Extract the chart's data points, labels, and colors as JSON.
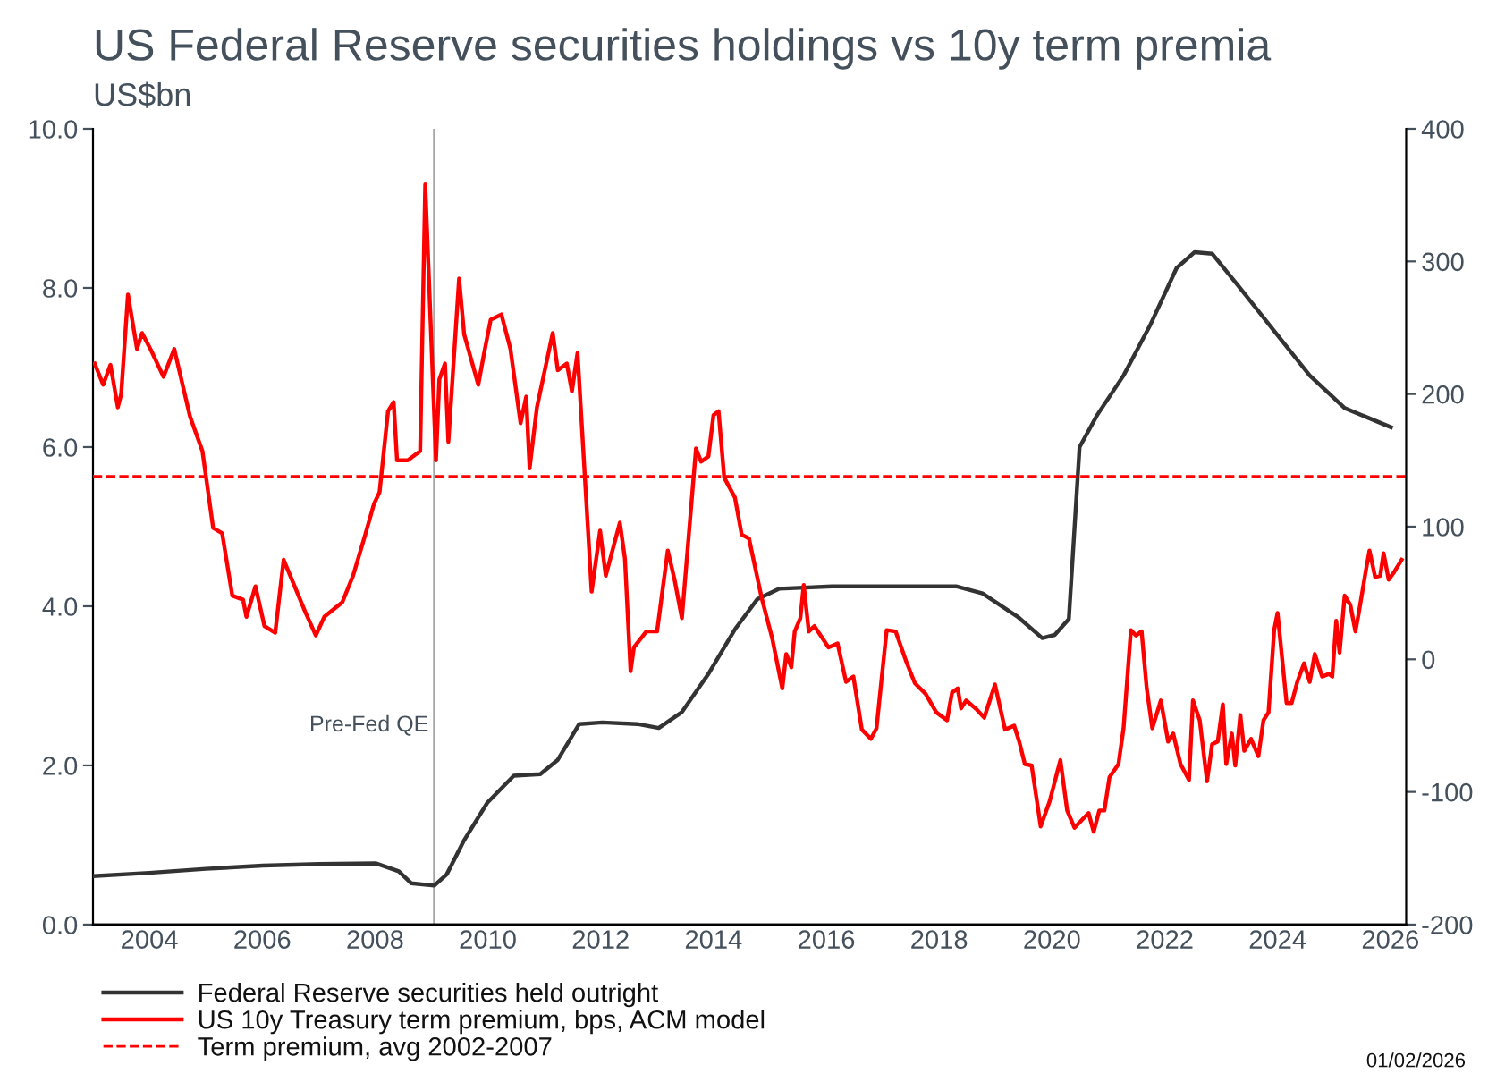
{
  "chart_data": {
    "type": "line",
    "title": "US Federal Reserve securities holdings vs 10y term premia",
    "subtitle": "US$bn",
    "xlim": [
      2003,
      2026.28
    ],
    "xticks": [
      2004,
      2006,
      2008,
      2010,
      2012,
      2014,
      2016,
      2018,
      2020,
      2022,
      2024,
      2026
    ],
    "ylim": [
      0,
      10
    ],
    "yticks": [
      {
        "value": 0,
        "label": "0.0"
      },
      {
        "value": 2,
        "label": "2.0"
      },
      {
        "value": 4,
        "label": "4.0"
      },
      {
        "value": 6,
        "label": "6.0"
      },
      {
        "value": 8,
        "label": "8.0"
      },
      {
        "value": 10,
        "label": "10.0"
      }
    ],
    "y2lim": [
      -200,
      400
    ],
    "y2ticks": [
      -200,
      -100,
      0,
      100,
      200,
      300,
      400
    ],
    "grid": false,
    "legend": "bottom left",
    "marker": "none",
    "series": [
      {
        "name": "Federal Reserve securities held outright",
        "color": "#333333",
        "axis": "y",
        "x": [
          2003.0,
          2004.0,
          2005.0,
          2006.01,
          2007.01,
          2008.01,
          2008.42,
          2008.64,
          2009.05,
          2009.27,
          2009.58,
          2009.99,
          2010.46,
          2010.93,
          2011.24,
          2011.62,
          2012.03,
          2012.65,
          2013.03,
          2013.44,
          2013.91,
          2014.38,
          2014.78,
          2015.16,
          2016.1,
          2017.36,
          2018.3,
          2018.77,
          2019.39,
          2019.83,
          2020.05,
          2020.3,
          2020.49,
          2020.8,
          2021.27,
          2021.74,
          2022.21,
          2022.53,
          2022.84,
          2023.31,
          2023.94,
          2024.57,
          2025.19,
          2026.01
        ],
        "values": [
          0.61,
          0.65,
          0.7,
          0.74,
          0.76,
          0.77,
          0.67,
          0.52,
          0.49,
          0.63,
          1.06,
          1.53,
          1.87,
          1.89,
          2.07,
          2.52,
          2.54,
          2.52,
          2.47,
          2.67,
          3.15,
          3.71,
          4.09,
          4.22,
          4.25,
          4.25,
          4.25,
          4.16,
          3.87,
          3.6,
          3.64,
          3.84,
          6.0,
          6.4,
          6.9,
          7.53,
          8.25,
          8.45,
          8.43,
          8.02,
          7.46,
          6.9,
          6.49,
          6.25
        ]
      },
      {
        "name": "US 10y Treasury term premium, bps, ACM model",
        "color": "#ff0000",
        "axis": "y2",
        "x": [
          2003.03,
          2003.18,
          2003.31,
          2003.44,
          2003.5,
          2003.62,
          2003.78,
          2003.87,
          2004.03,
          2004.25,
          2004.44,
          2004.72,
          2004.94,
          2005.13,
          2005.29,
          2005.47,
          2005.66,
          2005.72,
          2005.88,
          2006.04,
          2006.23,
          2006.38,
          2006.76,
          2006.95,
          2007.1,
          2007.42,
          2007.61,
          2007.82,
          2007.98,
          2008.08,
          2008.23,
          2008.33,
          2008.39,
          2008.58,
          2008.8,
          2008.89,
          2009.08,
          2009.14,
          2009.24,
          2009.3,
          2009.49,
          2009.58,
          2009.83,
          2009.93,
          2010.05,
          2010.24,
          2010.4,
          2010.58,
          2010.68,
          2010.74,
          2010.87,
          2011.15,
          2011.24,
          2011.4,
          2011.49,
          2011.59,
          2011.84,
          2011.99,
          2012.09,
          2012.34,
          2012.43,
          2012.53,
          2012.59,
          2012.81,
          2013.0,
          2013.19,
          2013.31,
          2013.44,
          2013.69,
          2013.78,
          2013.91,
          2014.0,
          2014.09,
          2014.19,
          2014.38,
          2014.5,
          2014.63,
          2014.85,
          2015.04,
          2015.22,
          2015.29,
          2015.38,
          2015.44,
          2015.54,
          2015.6,
          2015.69,
          2015.79,
          2016.04,
          2016.2,
          2016.35,
          2016.48,
          2016.63,
          2016.79,
          2016.89,
          2017.07,
          2017.23,
          2017.42,
          2017.57,
          2017.76,
          2017.95,
          2018.14,
          2018.23,
          2018.33,
          2018.39,
          2018.48,
          2018.67,
          2018.8,
          2018.99,
          2019.17,
          2019.33,
          2019.42,
          2019.52,
          2019.64,
          2019.8,
          2019.96,
          2020.15,
          2020.27,
          2020.4,
          2020.58,
          2020.65,
          2020.74,
          2020.84,
          2020.93,
          2021.02,
          2021.18,
          2021.27,
          2021.4,
          2021.49,
          2021.59,
          2021.68,
          2021.78,
          2021.93,
          2022.06,
          2022.15,
          2022.28,
          2022.43,
          2022.5,
          2022.62,
          2022.75,
          2022.84,
          2022.94,
          2023.03,
          2023.09,
          2023.19,
          2023.25,
          2023.34,
          2023.41,
          2023.53,
          2023.66,
          2023.75,
          2023.84,
          2023.94,
          2024.0,
          2024.16,
          2024.25,
          2024.35,
          2024.47,
          2024.57,
          2024.66,
          2024.79,
          2024.91,
          2024.97,
          2025.04,
          2025.1,
          2025.19,
          2025.29,
          2025.38,
          2025.44,
          2025.57,
          2025.63,
          2025.73,
          2025.82,
          2025.88,
          2025.97,
          2026.07,
          2026.2
        ],
        "values": [
          223,
          207,
          222,
          190,
          200,
          275,
          234,
          246,
          233,
          213,
          234,
          183,
          157,
          99,
          95,
          48,
          45,
          32,
          55,
          25,
          20,
          75,
          36,
          18,
          32,
          43,
          63,
          93,
          117,
          126,
          187,
          194,
          150,
          150,
          157,
          358,
          150,
          211,
          223,
          164,
          287,
          245,
          207,
          230,
          256,
          260,
          234,
          178,
          198,
          144,
          190,
          246,
          218,
          223,
          202,
          231,
          51,
          97,
          63,
          103,
          76,
          -9,
          9,
          21,
          21,
          82,
          60,
          31,
          159,
          149,
          153,
          184,
          187,
          137,
          122,
          94,
          91,
          47,
          16,
          -22,
          4,
          -6,
          21,
          31,
          56,
          21,
          25,
          9,
          12,
          -17,
          -13,
          -53,
          -60,
          -52,
          22,
          21,
          -2,
          -18,
          -26,
          -40,
          -46,
          -25,
          -22,
          -37,
          -31,
          -38,
          -44,
          -19,
          -53,
          -50,
          -62,
          -79,
          -80,
          -126,
          -107,
          -76,
          -114,
          -127,
          -119,
          -116,
          -130,
          -114,
          -114,
          -89,
          -79,
          -52,
          22,
          18,
          21,
          -22,
          -52,
          -31,
          -62,
          -56,
          -79,
          -91,
          -31,
          -46,
          -92,
          -64,
          -62,
          -34,
          -79,
          -56,
          -80,
          -42,
          -69,
          -60,
          -73,
          -46,
          -40,
          22,
          35,
          -33,
          -33,
          -17,
          -3,
          -17,
          4,
          -13,
          -11,
          -13,
          29,
          5,
          48,
          41,
          21,
          35,
          68,
          82,
          62,
          63,
          80,
          60,
          66,
          75
        ]
      }
    ],
    "ref_lines": [
      {
        "axis": "y2",
        "value": 138,
        "label": "Term premium, avg 2002-2007",
        "color": "#ff0000",
        "line_style": "dashed"
      },
      {
        "axis": "x",
        "value": 2009.05,
        "label": "Pre-Fed QE",
        "color": "#a6a6a6",
        "line_style": "solid"
      }
    ],
    "annotations": [
      "01/02/2026"
    ]
  }
}
